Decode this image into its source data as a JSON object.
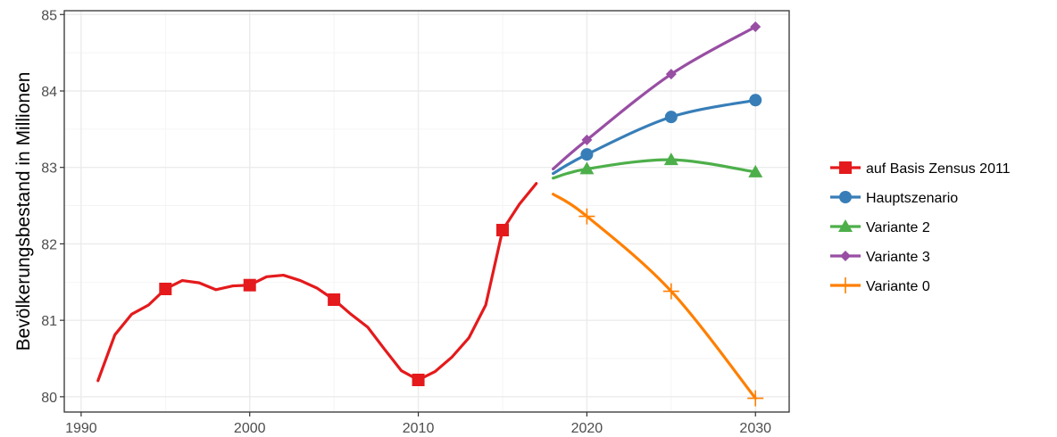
{
  "chart_data": {
    "type": "line",
    "title": "",
    "xlabel": "",
    "ylabel": "Bevölkerungsbestand in Millionen",
    "xlim": [
      1989,
      2032
    ],
    "ylim": [
      79.8,
      85.05
    ],
    "x_ticks": [
      1990,
      2000,
      2010,
      2020,
      2030
    ],
    "y_ticks": [
      80,
      81,
      82,
      83,
      84,
      85
    ],
    "grid": true,
    "legend_position": "right",
    "series": [
      {
        "name": "auf Basis Zensus 2011",
        "color": "#e41a1c",
        "marker": "square",
        "x": [
          1991,
          1992,
          1993,
          1994,
          1995,
          1996,
          1997,
          1998,
          1999,
          2000,
          2001,
          2002,
          2003,
          2004,
          2005,
          2006,
          2007,
          2008,
          2009,
          2010,
          2011,
          2012,
          2013,
          2014,
          2015,
          2016,
          2017
        ],
        "values": [
          80.21,
          80.81,
          81.08,
          81.2,
          81.41,
          81.52,
          81.49,
          81.4,
          81.45,
          81.46,
          81.57,
          81.59,
          81.52,
          81.42,
          81.27,
          81.08,
          80.91,
          80.62,
          80.34,
          80.22,
          80.33,
          80.52,
          80.77,
          81.2,
          82.18,
          82.52,
          82.79
        ],
        "marker_x": [
          1995,
          2000,
          2005,
          2010,
          2015
        ]
      },
      {
        "name": "Hauptszenario",
        "color": "#377eb8",
        "marker": "circle",
        "x": [
          2018,
          2020,
          2025,
          2030
        ],
        "values": [
          82.92,
          83.17,
          83.66,
          83.88
        ],
        "marker_x": [
          2020,
          2025,
          2030
        ]
      },
      {
        "name": "Variante 2",
        "color": "#4daf4a",
        "marker": "triangle",
        "x": [
          2018,
          2020,
          2025,
          2030
        ],
        "values": [
          82.86,
          82.98,
          83.1,
          82.94
        ],
        "marker_x": [
          2020,
          2025,
          2030
        ]
      },
      {
        "name": "Variante 3",
        "color": "#984ea3",
        "marker": "diamond",
        "x": [
          2018,
          2020,
          2025,
          2030
        ],
        "values": [
          82.98,
          83.36,
          84.22,
          84.84
        ],
        "marker_x": [
          2020,
          2025,
          2030
        ]
      },
      {
        "name": "Variante 0",
        "color": "#ff7f00",
        "marker": "plus",
        "x": [
          2018,
          2020,
          2025,
          2030
        ],
        "values": [
          82.65,
          82.36,
          81.38,
          79.98
        ],
        "marker_x": [
          2020,
          2025,
          2030
        ]
      }
    ]
  }
}
